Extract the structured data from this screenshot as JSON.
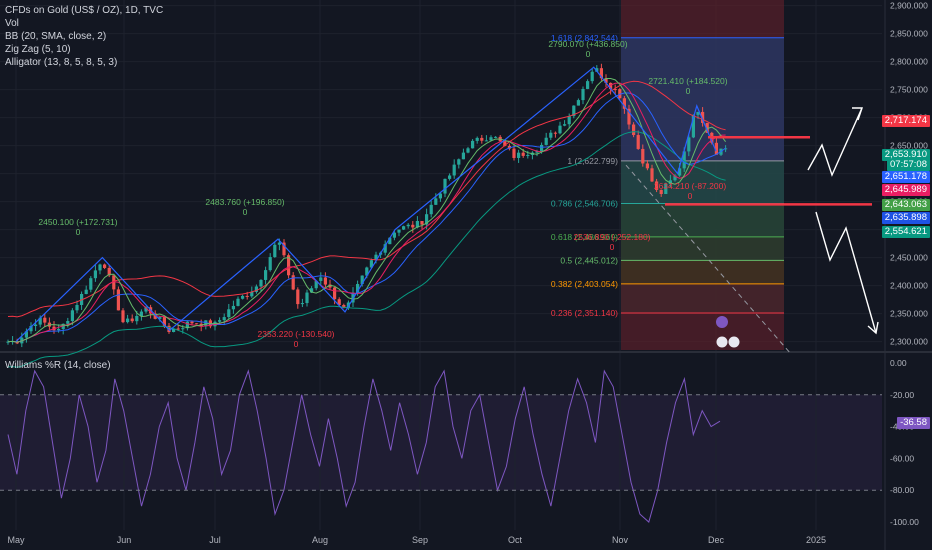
{
  "legend": {
    "title": "CFDs on Gold (US$ / OZ), 1D, TVC",
    "vol": "Vol",
    "bb": "BB (20, SMA, close, 2)",
    "zigzag": "Zig Zag (5, 10)",
    "alligator": "Alligator (13, 8, 5, 8, 5, 3)",
    "williams": "Williams %R (14, close)"
  },
  "colors": {
    "bg": "#131722",
    "up": "#26a69a",
    "down": "#ef5350",
    "zigzag": "#2962ff",
    "bb": "#f23645",
    "bb_lower": "#089981",
    "fib_upper_fill": "#1e3a6e",
    "red_zone": "#5a1f2a",
    "williams": "#7e57c2",
    "white": "#ffffff"
  },
  "chart_data": [
    {
      "type": "candlestick",
      "title": "CFDs on Gold (US$ / OZ), 1D, TVC",
      "x_ticks": [
        "May",
        "Jun",
        "Jul",
        "Aug",
        "Sep",
        "Oct",
        "Nov",
        "Dec",
        "2025"
      ],
      "y_ticks": [
        "2,300.000",
        "2,350.000",
        "2,400.000",
        "2,450.000",
        "2,500.000",
        "2,550.000",
        "2,600.000",
        "2,650.000",
        "2,700.000",
        "2,750.000",
        "2,800.000",
        "2,850.000",
        "2,900.000"
      ],
      "ylim": [
        2285,
        2910
      ],
      "close_path": [
        [
          "May",
          2300
        ],
        [
          "May",
          2340
        ],
        [
          "May",
          2318
        ],
        [
          "May",
          2380
        ],
        [
          "May",
          2450
        ],
        [
          "Jun",
          2330
        ],
        [
          "Jun",
          2360
        ],
        [
          "Jun",
          2320
        ],
        [
          "Jun",
          2335
        ],
        [
          "Jul",
          2330
        ],
        [
          "Jul",
          2370
        ],
        [
          "Jul",
          2400
        ],
        [
          "Jul",
          2483
        ],
        [
          "Jul",
          2360
        ],
        [
          "Aug",
          2420
        ],
        [
          "Aug",
          2353
        ],
        [
          "Aug",
          2440
        ],
        [
          "Aug",
          2500
        ],
        [
          "Sep",
          2510
        ],
        [
          "Sep",
          2580
        ],
        [
          "Sep",
          2650
        ],
        [
          "Sep",
          2670
        ],
        [
          "Oct",
          2630
        ],
        [
          "Oct",
          2650
        ],
        [
          "Oct",
          2700
        ],
        [
          "Oct",
          2790
        ],
        [
          "Nov",
          2740
        ],
        [
          "Nov",
          2640
        ],
        [
          "Nov",
          2560
        ],
        [
          "Nov",
          2600
        ],
        [
          "Nov",
          2721
        ],
        [
          "Dec",
          2640
        ],
        [
          "Dec",
          2660
        ],
        [
          "Dec",
          2653
        ]
      ],
      "annotations": [
        {
          "text": "2450.100 (+172.731)",
          "sub": "0"
        },
        {
          "text": "2483.760 (+196.850)",
          "sub": "0"
        },
        {
          "text": "2353.220 (-130.540)",
          "sub": "0"
        },
        {
          "text": "2790.070 (+436.850)",
          "sub": "0"
        },
        {
          "text": "2721.410 (+184.520)",
          "sub": "0"
        },
        {
          "text": "2634.210 (-87.200)",
          "sub": "0"
        },
        {
          "text": "2536.890 (-252.180)",
          "sub": "0"
        }
      ],
      "fib_levels": [
        {
          "label": "1.618 (2,842.544)",
          "value": 2842.544,
          "color": "#2962ff"
        },
        {
          "label": "1 (2,622.799)",
          "value": 2622.799,
          "color": "#9598a1"
        },
        {
          "label": "0.786 (2,546.706)",
          "value": 2546.706,
          "color": "#26a69a"
        },
        {
          "label": "0.618 (2,486.969)",
          "value": 2486.969,
          "color": "#4caf50"
        },
        {
          "label": "0.5 (2,445.012)",
          "value": 2445.012,
          "color": "#66bb6a"
        },
        {
          "label": "0.382 (2,403.054)",
          "value": 2403.054,
          "color": "#ff9800"
        },
        {
          "label": "0.236 (2,351.140)",
          "value": 2351.14,
          "color": "#f23645"
        }
      ],
      "horizontal_lines": [
        2665,
        2545
      ],
      "price_tags": [
        {
          "text": "2,717.174",
          "bg": "#f23645"
        },
        {
          "text": "2,653.910",
          "bg": "#089981"
        },
        {
          "text": "07:57:08",
          "bg": "#089981"
        },
        {
          "text": "2,651.178",
          "bg": "#2962ff"
        },
        {
          "text": "2,645.989",
          "bg": "#e91e63"
        },
        {
          "text": "2,643.063",
          "bg": "#43a047"
        },
        {
          "text": "2,635.898",
          "bg": "#1e53e5"
        },
        {
          "text": "2,554.621",
          "bg": "#089981"
        }
      ]
    },
    {
      "type": "line",
      "title": "Williams %R (14, close)",
      "y_ticks": [
        "0.00",
        "-20.00",
        "-40.00",
        "-60.00",
        "-80.00",
        "-100.00"
      ],
      "ylim": [
        -105,
        5
      ],
      "band": [
        -80,
        -20
      ],
      "current_value": "-36.58",
      "values": [
        -45,
        -70,
        -30,
        -5,
        -15,
        -50,
        -85,
        -60,
        -20,
        -40,
        -75,
        -55,
        -10,
        -30,
        -60,
        -90,
        -70,
        -40,
        -25,
        -60,
        -80,
        -50,
        -15,
        -35,
        -70,
        -55,
        -20,
        -5,
        -30,
        -60,
        -95,
        -80,
        -50,
        -20,
        -45,
        -65,
        -35,
        -60,
        -90,
        -75,
        -40,
        -10,
        -30,
        -55,
        -25,
        -45,
        -70,
        -50,
        -15,
        -5,
        -40,
        -60,
        -30,
        -20,
        -50,
        -80,
        -65,
        -35,
        -15,
        -45,
        -70,
        -90,
        -60,
        -30,
        -10,
        -25,
        -50,
        -5,
        -15,
        -45,
        -75,
        -95,
        -100,
        -80,
        -50,
        -25,
        -10,
        -45,
        -30,
        -40,
        -36.58
      ]
    }
  ]
}
